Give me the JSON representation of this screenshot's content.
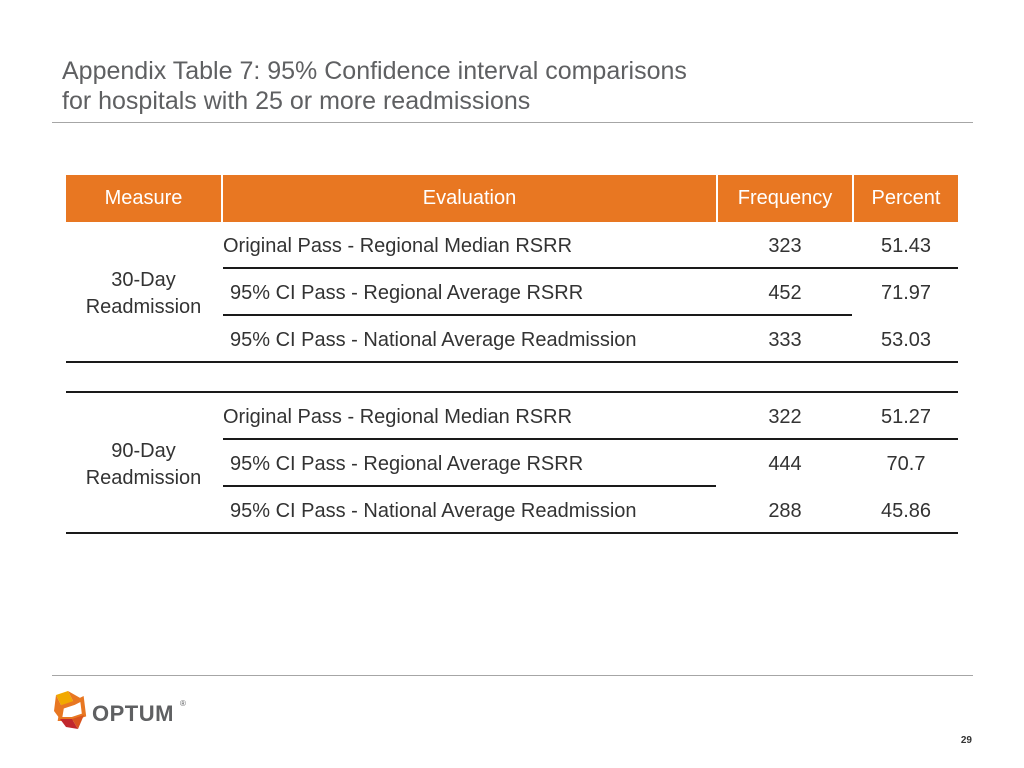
{
  "title": {
    "line1": "Appendix Table 7: 95% Confidence interval comparisons",
    "line2": "for hospitals with 25 or more readmissions"
  },
  "table": {
    "headers": {
      "measure": "Measure",
      "evaluation": "Evaluation",
      "frequency": "Frequency",
      "percent": "Percent"
    },
    "groups": [
      {
        "measure_line1": "30-Day",
        "measure_line2": "Readmission",
        "rows": [
          {
            "evaluation": "Original Pass - Regional Median RSRR",
            "frequency": "323",
            "percent": "51.43"
          },
          {
            "evaluation": "95% CI Pass - Regional Average RSRR",
            "frequency": "452",
            "percent": "71.97"
          },
          {
            "evaluation": "95% CI Pass - National Average Readmission",
            "frequency": "333",
            "percent": "53.03"
          }
        ]
      },
      {
        "measure_line1": "90-Day",
        "measure_line2": "Readmission",
        "rows": [
          {
            "evaluation": "Original Pass - Regional Median RSRR",
            "frequency": "322",
            "percent": "51.27"
          },
          {
            "evaluation": "95% CI Pass - Regional Average RSRR",
            "frequency": "444",
            "percent": "70.7"
          },
          {
            "evaluation": "95% CI Pass - National Average Readmission",
            "frequency": "288",
            "percent": "45.86"
          }
        ]
      }
    ]
  },
  "logo": {
    "text": "OPTUM",
    "registered": "®",
    "icon": "optum-logo-icon",
    "brand_colors": [
      "#e87722",
      "#f2a900",
      "#c1272d"
    ]
  },
  "page_number": "29",
  "colors": {
    "header_bg": "#e87722",
    "header_text": "#ffffff",
    "title_text": "#5f6062",
    "rule": "#a6a6a6"
  }
}
